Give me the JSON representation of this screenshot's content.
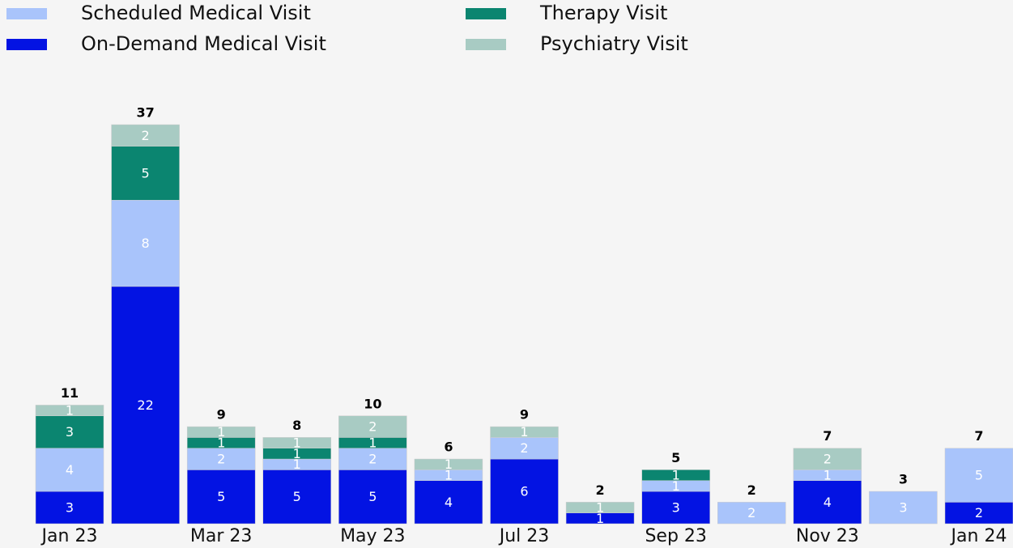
{
  "chart_data": {
    "type": "stacked_bar",
    "categories": [
      "Jan 23",
      null,
      "Mar 23",
      null,
      "May 23",
      null,
      "Jul 23",
      null,
      "Sep 23",
      null,
      "Nov 23",
      null,
      "Jan 24"
    ],
    "series": [
      {
        "name": "On-Demand Medical Visit",
        "color": "#0313e3",
        "values": [
          3,
          22,
          5,
          5,
          5,
          4,
          6,
          1,
          3,
          0,
          4,
          0,
          2
        ]
      },
      {
        "name": "Scheduled Medical Visit",
        "color": "#a9c4fb",
        "values": [
          4,
          8,
          2,
          1,
          2,
          1,
          2,
          0,
          1,
          2,
          1,
          3,
          5
        ]
      },
      {
        "name": "Therapy Visit",
        "color": "#0b8570",
        "values": [
          3,
          5,
          1,
          1,
          1,
          0,
          0,
          0,
          1,
          0,
          0,
          0,
          0
        ]
      },
      {
        "name": "Psychiatry Visit",
        "color": "#a8cbc3",
        "values": [
          1,
          2,
          1,
          1,
          2,
          1,
          1,
          1,
          0,
          0,
          2,
          0,
          0
        ]
      }
    ],
    "totals": [
      11,
      37,
      9,
      8,
      10,
      6,
      9,
      2,
      5,
      2,
      7,
      3,
      7
    ]
  }
}
